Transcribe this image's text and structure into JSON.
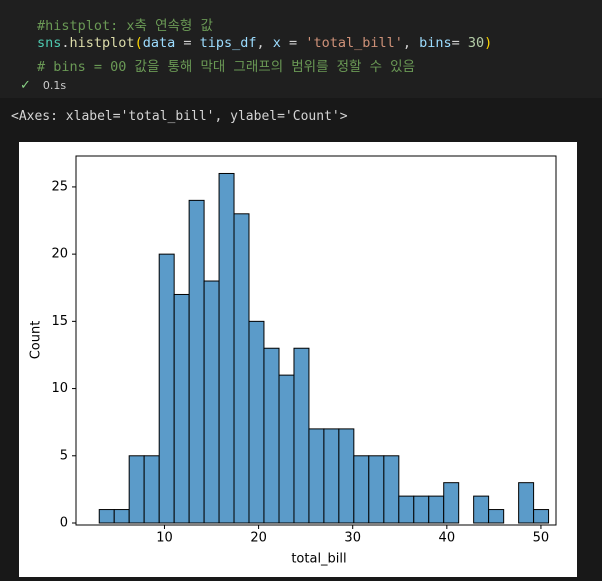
{
  "code": {
    "lines": [
      [
        "#histplot: x축 연속형 값"
      ],
      [
        "sns",
        ".",
        "histplot",
        "(",
        "data",
        " = ",
        "tips_df",
        ", ",
        "x",
        " = ",
        "'total_bill'",
        ", ",
        "bins",
        "= ",
        "30",
        ")"
      ],
      [
        "# bins = 00 값을 통해 막대 그래프의 범위를 정할 수 있음"
      ]
    ]
  },
  "status": {
    "icon": "✓",
    "time": "0.1s"
  },
  "output": "<Axes: xlabel='total_bill', ylabel='Count'>",
  "chart_data": {
    "type": "histogram",
    "xlabel": "total_bill",
    "ylabel": "Count",
    "bins": [
      3.07,
      4.66,
      6.25,
      7.84,
      9.44,
      11.03,
      12.62,
      14.21,
      15.8,
      17.39,
      18.98,
      20.57,
      22.17,
      23.76,
      25.35,
      26.94,
      28.53,
      30.12,
      31.71,
      33.31,
      34.9,
      36.49,
      38.08,
      39.67,
      41.26,
      42.85,
      44.44,
      46.04,
      47.63,
      49.22,
      50.81
    ],
    "values": [
      1,
      1,
      5,
      5,
      20,
      17,
      24,
      18,
      26,
      23,
      15,
      13,
      11,
      13,
      7,
      7,
      7,
      5,
      5,
      5,
      2,
      2,
      2,
      3,
      0,
      2,
      1,
      0,
      3,
      1
    ],
    "color": "#5b9bc9",
    "edgecolor": "#000000",
    "xlim": [
      0.6,
      51.6
    ],
    "ylim": [
      0,
      27.3
    ],
    "xticks": [
      10,
      20,
      30,
      40,
      50
    ],
    "yticks": [
      0,
      5,
      10,
      15,
      20,
      25
    ]
  }
}
